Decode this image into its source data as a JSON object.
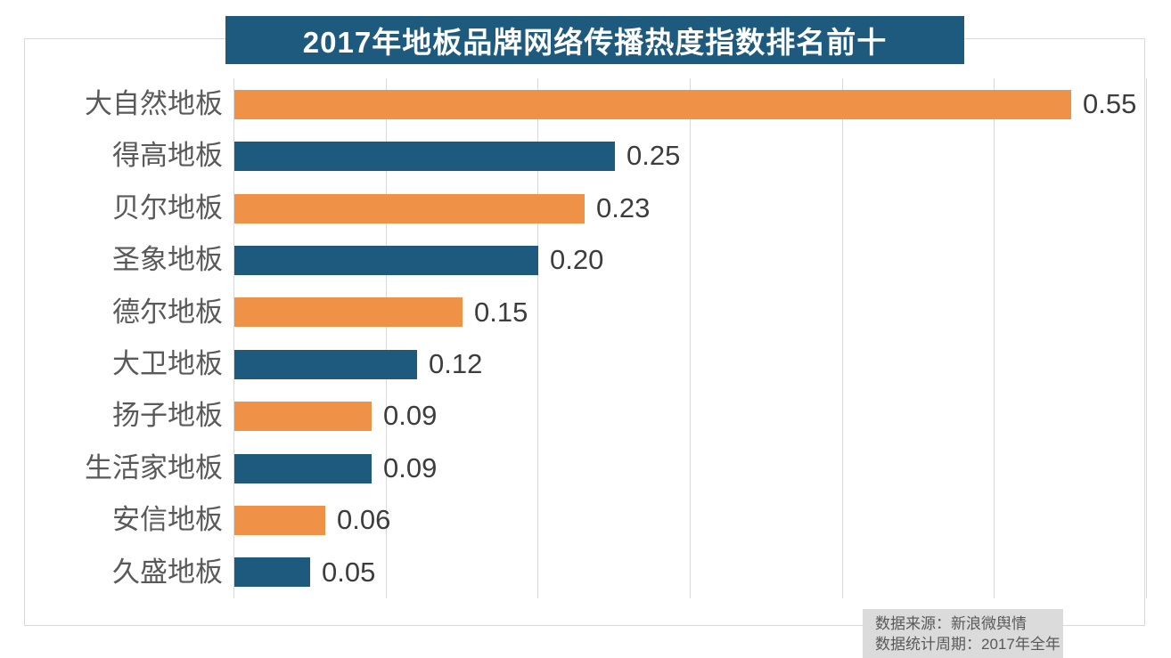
{
  "title": "2017年地板品牌网络传播热度指数排名前十",
  "chart_data": {
    "type": "bar",
    "orientation": "horizontal",
    "title": "2017年地板品牌网络传播热度指数排名前十",
    "categories": [
      "大自然地板",
      "得高地板",
      "贝尔地板",
      "圣象地板",
      "德尔地板",
      "大卫地板",
      "扬子地板",
      "生活家地板",
      "安信地板",
      "久盛地板"
    ],
    "values": [
      0.55,
      0.25,
      0.23,
      0.2,
      0.15,
      0.12,
      0.09,
      0.09,
      0.06,
      0.05
    ],
    "value_labels": [
      "0.55",
      "0.25",
      "0.23",
      "0.20",
      "0.15",
      "0.12",
      "0.09",
      "0.09",
      "0.06",
      "0.05"
    ],
    "xlim": [
      0,
      0.6
    ],
    "grid_interval": 0.1,
    "grid": "vertical-only",
    "legend": "none",
    "axis_tick_labels": "none",
    "bar_colors_alternate": [
      "#ef9247",
      "#1e5a7e"
    ]
  },
  "footer": {
    "source_line": "数据来源：新浪微舆情",
    "period_line": "数据统计周期：2017年全年"
  },
  "colors": {
    "banner_bg": "#1e5a7e",
    "banner_text": "#ffffff",
    "bar_orange": "#ef9247",
    "bar_blue": "#1e5a7e",
    "gridline": "#d9d9d9",
    "frame_border": "#d9d9d9",
    "category_text": "#595959",
    "value_text": "#3d3d3d",
    "footer_bg": "#dbdbdb",
    "footer_text": "#595959"
  }
}
